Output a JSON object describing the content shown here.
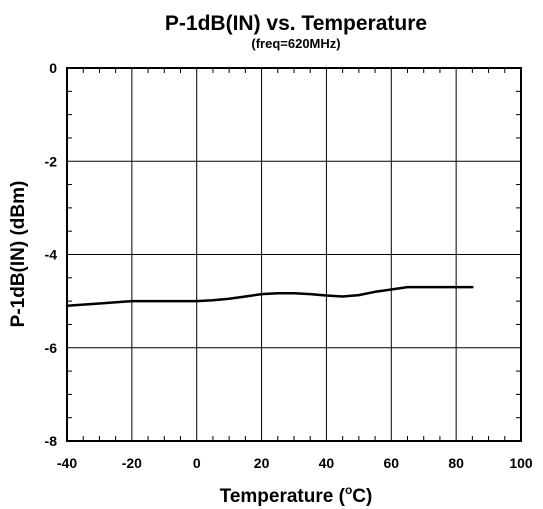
{
  "chart_data": {
    "type": "line",
    "title": "P-1dB(IN) vs. Temperature",
    "subtitle": "(freq=620MHz)",
    "xlabel_main": "Temperature (",
    "xlabel_unit": "C)",
    "xlabel_degree": "o",
    "ylabel": "P-1dB(IN) (dBm)",
    "xlim": [
      -40,
      100
    ],
    "ylim": [
      -8,
      0
    ],
    "x_major_ticks": [
      -40,
      -20,
      0,
      20,
      40,
      60,
      80,
      100
    ],
    "y_major_ticks": [
      -8,
      -6,
      -4,
      -2,
      0
    ],
    "x_tick_labels": [
      "-40",
      "-20",
      "0",
      "20",
      "40",
      "60",
      "80",
      "100"
    ],
    "y_tick_labels": [
      "-8",
      "-6",
      "-4",
      "-2",
      "0"
    ],
    "grid": true,
    "line_color": "#000000",
    "series": [
      {
        "x": [
          -40,
          -30,
          -20,
          -10,
          0,
          5,
          10,
          15,
          20,
          25,
          30,
          35,
          40,
          45,
          50,
          55,
          60,
          65,
          70,
          75,
          80,
          85
        ],
        "y": [
          -5.1,
          -5.05,
          -5.0,
          -5.0,
          -5.0,
          -4.98,
          -4.95,
          -4.9,
          -4.85,
          -4.83,
          -4.83,
          -4.85,
          -4.88,
          -4.9,
          -4.87,
          -4.8,
          -4.75,
          -4.7,
          -4.7,
          -4.7,
          -4.7,
          -4.7
        ]
      }
    ]
  }
}
